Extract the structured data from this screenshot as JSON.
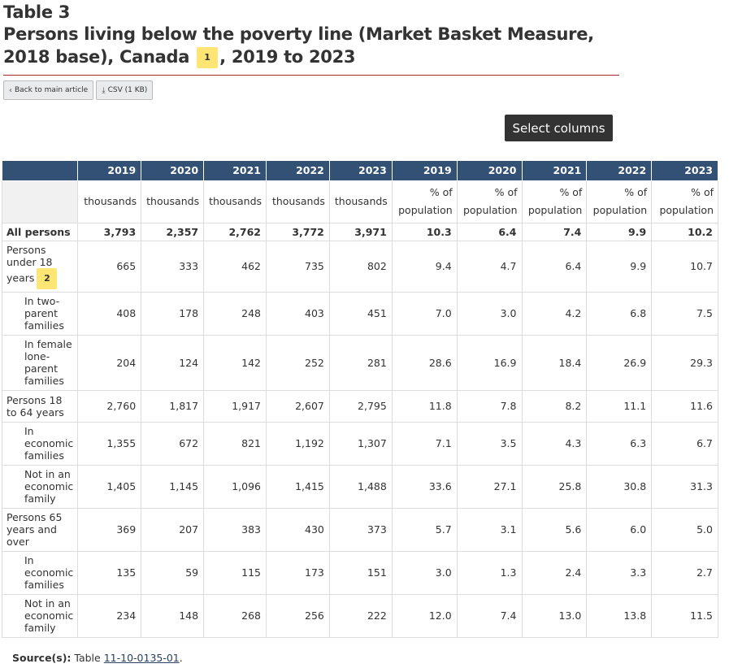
{
  "table_label": "Table 3",
  "title": {
    "part1": "Persons living below the poverty line (Market Basket Measure, 2018 base), Canada",
    "footnote": "1",
    "part2": ", 2019 to 2023"
  },
  "buttons": {
    "back_label": "Back to main article",
    "csv_label": "CSV (1 KB)",
    "select_columns_label": "Select columns"
  },
  "colors": {
    "header_bg": "#335075",
    "footnote_bg": "#fee574",
    "rule": "#a52a2a"
  },
  "columns": {
    "years": [
      "2019",
      "2020",
      "2021",
      "2022",
      "2023",
      "2019",
      "2020",
      "2021",
      "2022",
      "2023"
    ],
    "units": [
      "thousands",
      "thousands",
      "thousands",
      "thousands",
      "thousands",
      "% of population",
      "% of population",
      "% of population",
      "% of population",
      "% of population"
    ]
  },
  "rows": [
    {
      "label": "All persons",
      "values": [
        "3,793",
        "2,357",
        "2,762",
        "3,772",
        "3,971",
        "10.3",
        "6.4",
        "7.4",
        "9.9",
        "10.2"
      ]
    },
    {
      "label": "Persons under 18 years",
      "footnote": "2",
      "values": [
        "665",
        "333",
        "462",
        "735",
        "802",
        "9.4",
        "4.7",
        "6.4",
        "9.9",
        "10.7"
      ]
    },
    {
      "label": "In two-parent families",
      "values": [
        "408",
        "178",
        "248",
        "403",
        "451",
        "7.0",
        "3.0",
        "4.2",
        "6.8",
        "7.5"
      ]
    },
    {
      "label": "In female lone-parent families",
      "values": [
        "204",
        "124",
        "142",
        "252",
        "281",
        "28.6",
        "16.9",
        "18.4",
        "26.9",
        "29.3"
      ]
    },
    {
      "label": "Persons 18 to 64 years",
      "values": [
        "2,760",
        "1,817",
        "1,917",
        "2,607",
        "2,795",
        "11.8",
        "7.8",
        "8.2",
        "11.1",
        "11.6"
      ]
    },
    {
      "label": "In economic families",
      "values": [
        "1,355",
        "672",
        "821",
        "1,192",
        "1,307",
        "7.1",
        "3.5",
        "4.3",
        "6.3",
        "6.7"
      ]
    },
    {
      "label": "Not in an economic family",
      "values": [
        "1,405",
        "1,145",
        "1,096",
        "1,415",
        "1,488",
        "33.6",
        "27.1",
        "25.8",
        "30.8",
        "31.3"
      ]
    },
    {
      "label": "Persons 65 years and over",
      "values": [
        "369",
        "207",
        "383",
        "430",
        "373",
        "5.7",
        "3.1",
        "5.6",
        "6.0",
        "5.0"
      ]
    },
    {
      "label": "In economic families",
      "values": [
        "135",
        "59",
        "115",
        "173",
        "151",
        "3.0",
        "1.3",
        "2.4",
        "3.3",
        "2.7"
      ]
    },
    {
      "label": "Not in an economic family",
      "values": [
        "234",
        "148",
        "268",
        "256",
        "222",
        "12.0",
        "7.4",
        "13.0",
        "13.8",
        "11.5"
      ]
    }
  ],
  "source": {
    "label": "Source(s):",
    "text": "Table",
    "link": "11-10-0135-01",
    "end": "."
  }
}
